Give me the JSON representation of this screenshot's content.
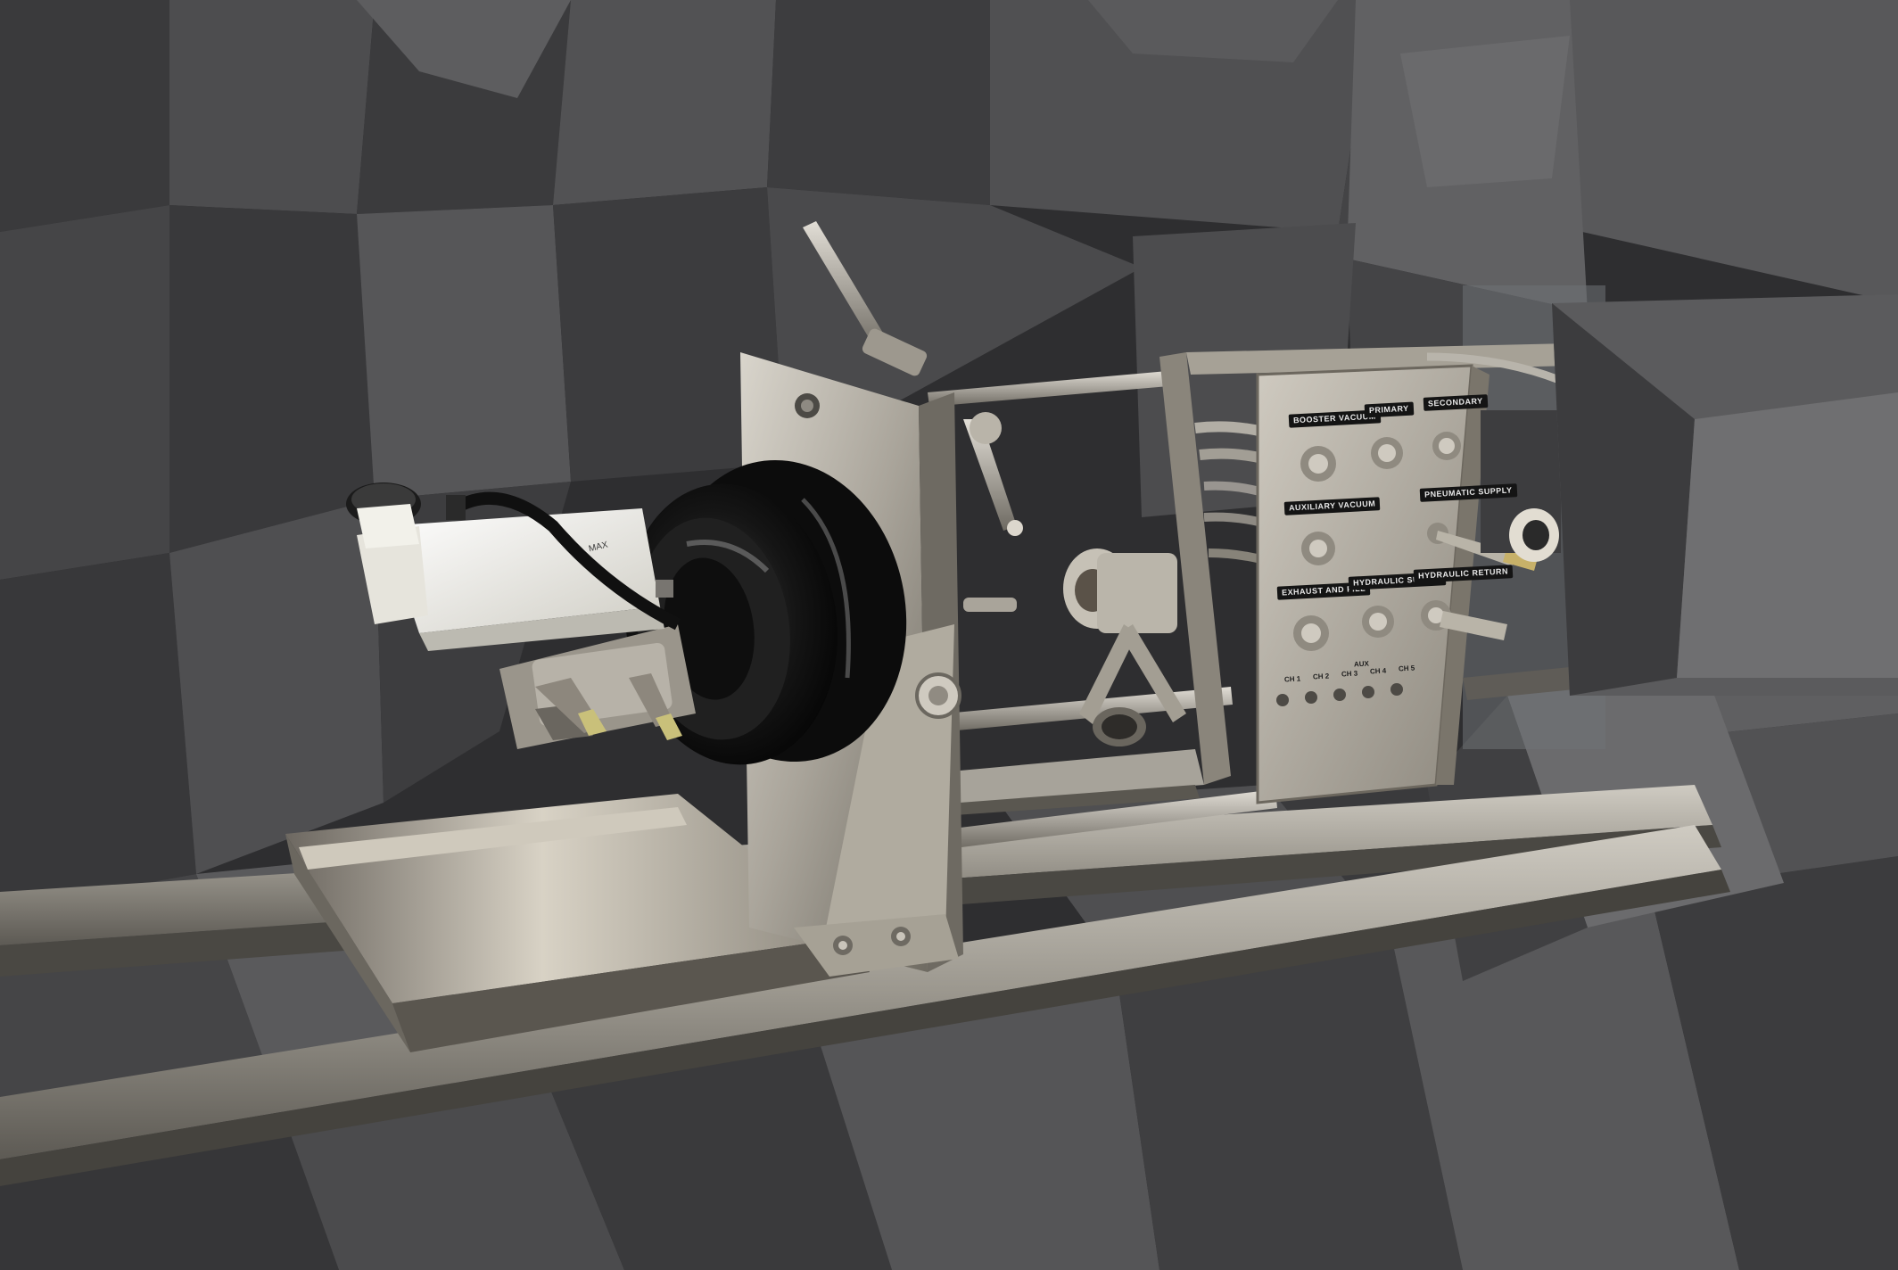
{
  "scene": {
    "palette": {
      "foam_dark": "#2f2f31",
      "foam_mid": "#4a4a4c",
      "foam_light": "#6c6c6e",
      "steel": "#b9b5ab",
      "steel_dark": "#7d786e",
      "booster_black": "#161616",
      "reservoir_white": "#ecebe4"
    },
    "panel_labels": [
      "BOOSTER VACUUM",
      "PRIMARY",
      "SECONDARY",
      "AUXILIARY VACUUM",
      "PNEUMATIC SUPPLY",
      "EXHAUST AND FILL",
      "HYDRAULIC SUPPLY",
      "HYDRAULIC RETURN"
    ],
    "channels_header": "AUX",
    "channels": [
      "CH 1",
      "CH 2",
      "CH 3",
      "CH 4",
      "CH 5"
    ],
    "reservoir_marking": "MAX"
  }
}
